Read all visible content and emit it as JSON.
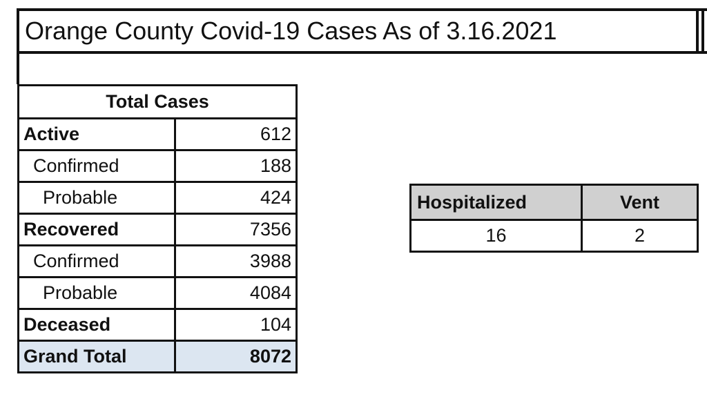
{
  "title": "Orange County Covid-19 Cases As of 3.16.2021",
  "total_cases": {
    "header": "Total Cases",
    "rows": [
      [
        "Active",
        612
      ],
      [
        "Confirmed",
        188
      ],
      [
        "Probable",
        424
      ],
      [
        "Recovered",
        7356
      ],
      [
        "Confirmed",
        3988
      ],
      [
        "Probable",
        4084
      ],
      [
        "Deceased",
        104
      ],
      [
        "Grand Total",
        8072
      ]
    ]
  },
  "hospital": {
    "headers": [
      "Hospitalized",
      "Vent"
    ],
    "row": [
      16,
      2
    ]
  }
}
